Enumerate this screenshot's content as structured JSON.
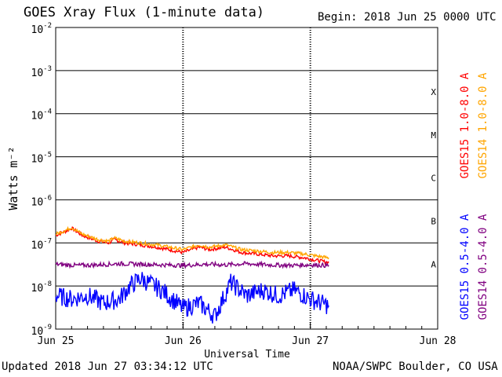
{
  "header": {
    "title": "GOES Xray Flux (1-minute data)",
    "begin": "Begin:  2018 Jun 25 0000 UTC"
  },
  "footer": {
    "updated": "Updated 2018 Jun 27 03:34:12 UTC",
    "credit": "NOAA/SWPC Boulder, CO USA"
  },
  "chart_data": {
    "type": "line",
    "title": "GOES Xray Flux (1-minute data)",
    "xlabel": "Universal Time",
    "ylabel": "Watts m⁻²",
    "yscale": "log",
    "ylim": [
      1e-09,
      0.01
    ],
    "xlim": [
      "2018-06-25 00:00",
      "2018-06-28 00:00"
    ],
    "x_ticks": [
      "Jun 25",
      "Jun 26",
      "Jun 27",
      "Jun 28"
    ],
    "y_ticks": [
      {
        "base": "10",
        "exp": "-9",
        "value": 1e-09
      },
      {
        "base": "10",
        "exp": "-8",
        "value": 1e-08
      },
      {
        "base": "10",
        "exp": "-7",
        "value": 1e-07
      },
      {
        "base": "10",
        "exp": "-6",
        "value": 1e-06
      },
      {
        "base": "10",
        "exp": "-5",
        "value": 1e-05
      },
      {
        "base": "10",
        "exp": "-4",
        "value": 0.0001
      },
      {
        "base": "10",
        "exp": "-3",
        "value": 0.001
      },
      {
        "base": "10",
        "exp": "-2",
        "value": 0.01
      }
    ],
    "flare_classes": [
      {
        "label": "A",
        "value": 3.2e-08
      },
      {
        "label": "B",
        "value": 3.2e-07
      },
      {
        "label": "C",
        "value": 3.2e-06
      },
      {
        "label": "M",
        "value": 3.2e-05
      },
      {
        "label": "X",
        "value": 0.00032
      }
    ],
    "grid": true,
    "series": [
      {
        "name": "GOES15 1.0-8.0 A",
        "color": "#ff0000",
        "x": [
          "2018-06-25 00:00",
          "2018-06-25 02:00",
          "2018-06-25 03:00",
          "2018-06-25 05:00",
          "2018-06-25 08:00",
          "2018-06-25 10:00",
          "2018-06-25 11:00",
          "2018-06-25 13:00",
          "2018-06-25 16:00",
          "2018-06-25 19:00",
          "2018-06-26 00:00",
          "2018-06-26 03:00",
          "2018-06-26 05:00",
          "2018-06-26 08:00",
          "2018-06-26 11:00",
          "2018-06-26 14:00",
          "2018-06-26 17:00",
          "2018-06-26 20:00",
          "2018-06-26 23:00",
          "2018-06-27 01:00",
          "2018-06-27 03:30"
        ],
        "y": [
          1.5e-07,
          1.9e-07,
          2.2e-07,
          1.5e-07,
          1.1e-07,
          1e-07,
          1.2e-07,
          1e-07,
          9e-08,
          8e-08,
          6e-08,
          8e-08,
          7e-08,
          8e-08,
          6e-08,
          5.5e-08,
          5e-08,
          5e-08,
          4.5e-08,
          4e-08,
          3.5e-08
        ]
      },
      {
        "name": "GOES14 1.0-8.0 A",
        "color": "#ffa500",
        "x": [
          "2018-06-25 00:00",
          "2018-06-25 02:00",
          "2018-06-25 03:00",
          "2018-06-25 05:00",
          "2018-06-25 08:00",
          "2018-06-25 10:00",
          "2018-06-25 11:00",
          "2018-06-25 13:00",
          "2018-06-25 16:00",
          "2018-06-25 19:00",
          "2018-06-26 00:00",
          "2018-06-26 03:00",
          "2018-06-26 05:00",
          "2018-06-26 08:00",
          "2018-06-26 11:00",
          "2018-06-26 14:00",
          "2018-06-26 17:00",
          "2018-06-26 20:00",
          "2018-06-26 23:00",
          "2018-06-27 01:00",
          "2018-06-27 03:30"
        ],
        "y": [
          1.6e-07,
          2e-07,
          2.3e-07,
          1.6e-07,
          1.2e-07,
          1.1e-07,
          1.3e-07,
          1.1e-07,
          1e-07,
          9e-08,
          7e-08,
          9e-08,
          8e-08,
          9e-08,
          7e-08,
          6.5e-08,
          6e-08,
          6e-08,
          5.5e-08,
          5e-08,
          4.5e-08
        ]
      },
      {
        "name": "GOES15 0.5-4.0 A",
        "color": "#0000ff",
        "x": [
          "2018-06-25 00:00",
          "2018-06-25 03:00",
          "2018-06-25 06:00",
          "2018-06-25 09:00",
          "2018-06-25 12:00",
          "2018-06-25 14:00",
          "2018-06-25 16:00",
          "2018-06-25 20:00",
          "2018-06-26 00:00",
          "2018-06-26 03:00",
          "2018-06-26 06:00",
          "2018-06-26 09:00",
          "2018-06-26 12:00",
          "2018-06-26 15:00",
          "2018-06-26 18:00",
          "2018-06-26 21:00",
          "2018-06-27 00:00",
          "2018-06-27 02:00",
          "2018-06-27 03:30"
        ],
        "y": [
          6e-09,
          5e-09,
          6e-09,
          4e-09,
          5e-09,
          1e-08,
          1.5e-08,
          8e-09,
          3e-09,
          4e-09,
          2e-09,
          1.2e-08,
          6e-09,
          8e-09,
          6e-09,
          8e-09,
          5e-09,
          4e-09,
          3.5e-09
        ]
      },
      {
        "name": "GOES14 0.5-4.0 A",
        "color": "#800080",
        "x": [
          "2018-06-25 00:00",
          "2018-06-25 04:00",
          "2018-06-25 08:00",
          "2018-06-25 12:00",
          "2018-06-25 16:00",
          "2018-06-25 20:00",
          "2018-06-26 00:00",
          "2018-06-26 04:00",
          "2018-06-26 08:00",
          "2018-06-26 12:00",
          "2018-06-26 16:00",
          "2018-06-26 20:00",
          "2018-06-27 00:00",
          "2018-06-27 03:30"
        ],
        "y": [
          3.2e-08,
          3e-08,
          3.1e-08,
          3.3e-08,
          3.2e-08,
          3.1e-08,
          3e-08,
          3.2e-08,
          3.1e-08,
          3.3e-08,
          3.1e-08,
          3e-08,
          3.1e-08,
          3e-08
        ]
      }
    ]
  }
}
